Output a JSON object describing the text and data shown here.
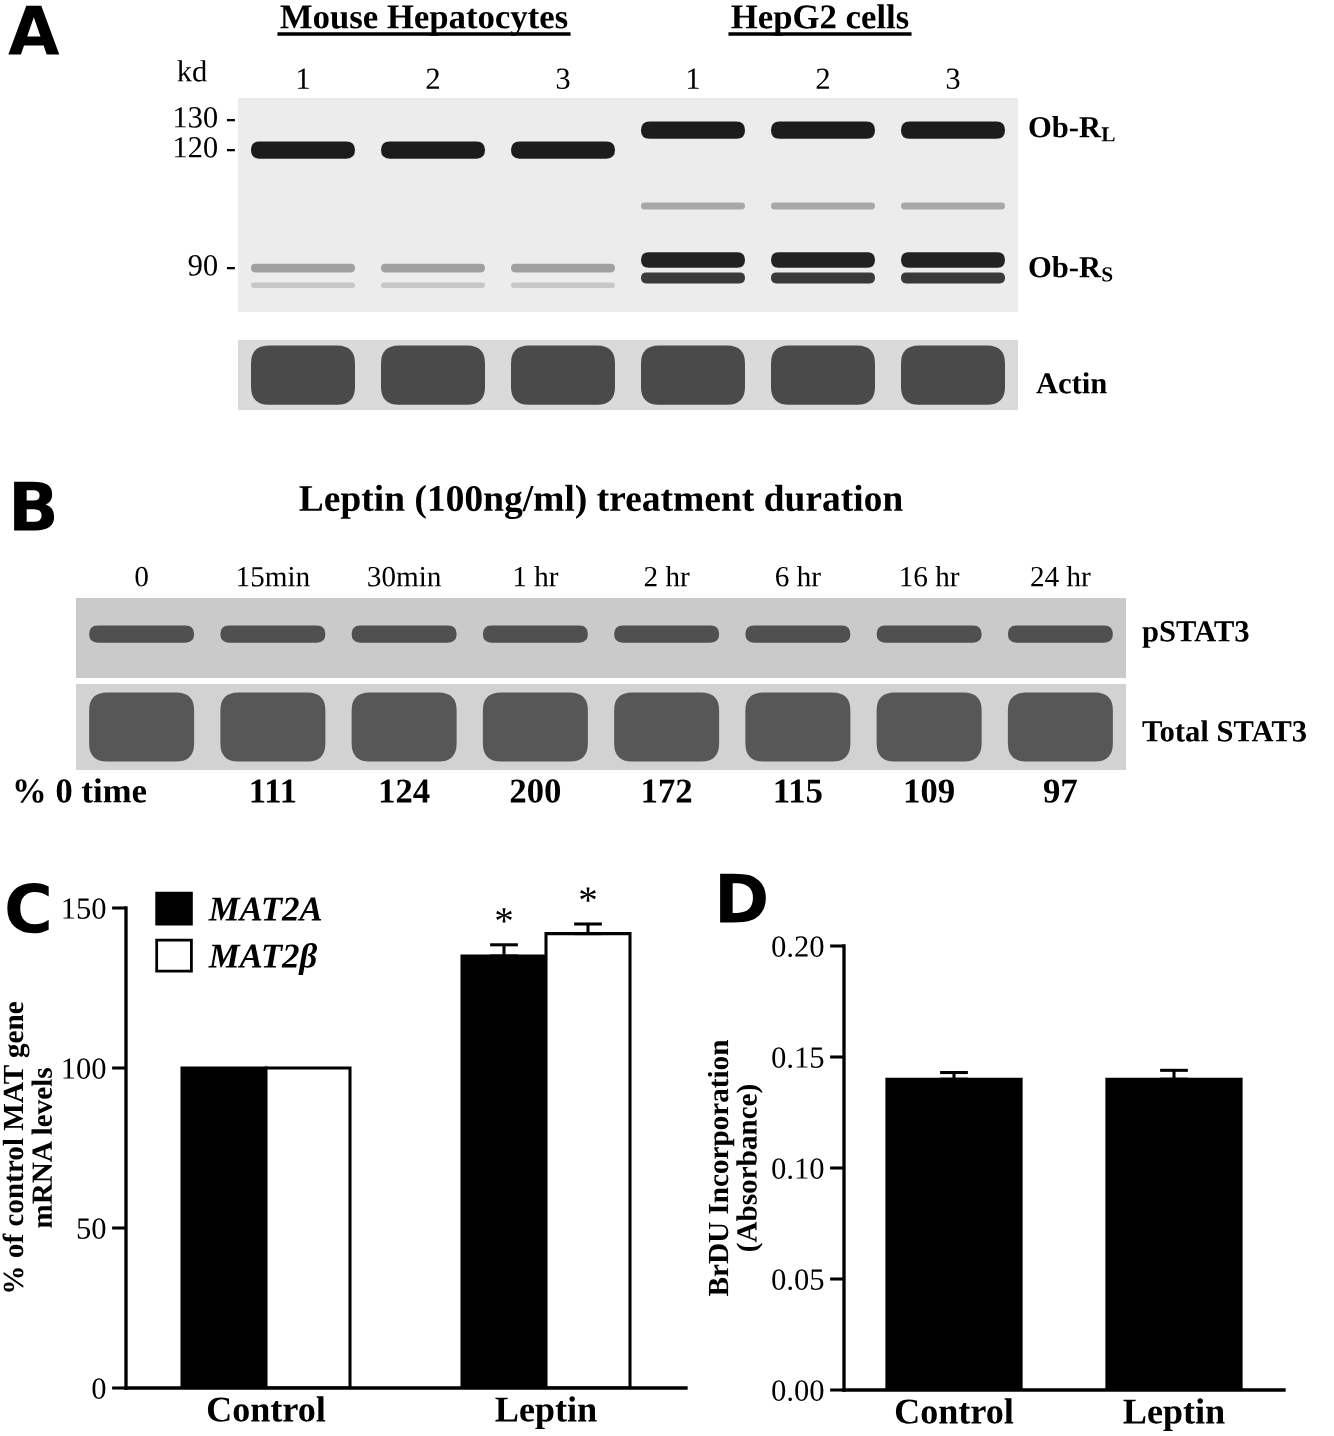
{
  "chart_data": [
    {
      "type": "other",
      "categories": [
        "1",
        "2",
        "3",
        "1",
        "2",
        "3"
      ],
      "annotations": [
        "A",
        "Mouse Hepatocytes",
        "HepG2 cells",
        "kd",
        "130 -",
        "120 -",
        "90 -",
        "Ob-R$_{L}$",
        "Ob-R$_{S}$",
        "Actin"
      ]
    },
    {
      "type": "other",
      "title": "Leptin (100ng/ml) treatment duration",
      "categories": [
        "0",
        "15min",
        "30min",
        "1 hr",
        "2 hr",
        "6 hr",
        "16 hr",
        "24 hr"
      ],
      "values": [
        null,
        111,
        124,
        200,
        172,
        115,
        109,
        97
      ],
      "data_labels": true,
      "annotations": [
        "B",
        "% 0 time",
        "pSTAT3",
        "Total STAT3"
      ]
    },
    {
      "type": "bar",
      "categories": [
        "Control",
        "Leptin"
      ],
      "series": [
        {
          "name": "MAT2A",
          "color": "#000000",
          "values": [
            100,
            135
          ],
          "errors": [
            null,
            [
              135,
              138.5
            ]
          ],
          "value_labels": [
            null,
            "*"
          ]
        },
        {
          "name": "MAT2β",
          "color": "#ffffff",
          "values": [
            100,
            142
          ],
          "errors": [
            null,
            [
              142,
              145
            ]
          ],
          "value_labels": [
            null,
            "*"
          ]
        }
      ],
      "ylabel": "% of control MAT gene\nmRNA levels",
      "ylim": [
        0,
        150
      ],
      "yticks": [
        0,
        50,
        100,
        150
      ],
      "legend": "top left",
      "annotations": [
        "C"
      ]
    },
    {
      "type": "bar",
      "categories": [
        "Control",
        "Leptin"
      ],
      "values": [
        0.14,
        0.14
      ],
      "color": "#000000",
      "errors": [
        [
          0.14,
          0.143
        ],
        [
          0.14,
          0.144
        ]
      ],
      "ylabel": "BrDU Incorporation\n(Absorbance)",
      "ylim": [
        0,
        0.2
      ],
      "yticks": [
        {
          "value": 0,
          "label": "0.00"
        },
        {
          "value": 0.05,
          "label": "0.05"
        },
        {
          "value": 0.1,
          "label": "0.10"
        },
        {
          "value": 0.15,
          "label": "0.15"
        },
        {
          "value": 0.2,
          "label": "0.20"
        }
      ],
      "annotations": [
        "D"
      ]
    }
  ]
}
